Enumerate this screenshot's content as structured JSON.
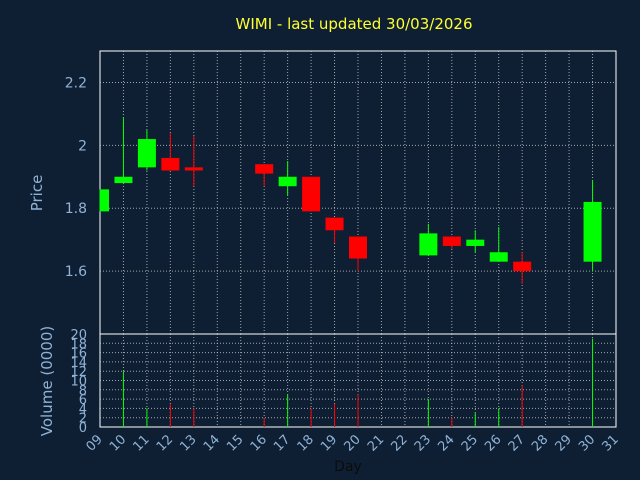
{
  "chart_data": {
    "type": "candlestick",
    "title": "WIMI - last updated 30/03/2026",
    "xlabel": "Day",
    "price_panel": {
      "ylabel": "Price",
      "ylim": [
        1.4,
        2.3
      ],
      "yticks": [
        "2.2",
        "2",
        "1.8",
        "1.6"
      ],
      "ytick_values": [
        2.2,
        2.0,
        1.8,
        1.6
      ],
      "grid": true
    },
    "volume_panel": {
      "ylabel": "Volume (0000)",
      "ylim": [
        0,
        20
      ],
      "yticks": [
        "0",
        "2",
        "4",
        "6",
        "8",
        "10",
        "12",
        "14",
        "16",
        "18",
        "20"
      ],
      "ytick_values": [
        0,
        2,
        4,
        6,
        8,
        10,
        12,
        14,
        16,
        18,
        20
      ],
      "grid": true
    },
    "x_range": [
      9,
      31
    ],
    "x_ticks": [
      "09",
      "10",
      "11",
      "12",
      "13",
      "14",
      "15",
      "16",
      "17",
      "18",
      "19",
      "20",
      "21",
      "22",
      "23",
      "24",
      "25",
      "26",
      "27",
      "28",
      "29",
      "30",
      "31"
    ],
    "colors": {
      "up": "#00ff00",
      "down": "#ff0000",
      "background": "#0f1f33",
      "grid": "#c8c8c8"
    },
    "candles": [
      {
        "day": 9,
        "open": 1.79,
        "close": 1.86,
        "high": 1.86,
        "low": 1.79,
        "volume": 0
      },
      {
        "day": 10,
        "open": 1.88,
        "close": 1.9,
        "high": 2.09,
        "low": 1.88,
        "volume": 12
      },
      {
        "day": 11,
        "open": 1.93,
        "close": 2.02,
        "high": 2.05,
        "low": 1.92,
        "volume": 4
      },
      {
        "day": 12,
        "open": 1.96,
        "close": 1.92,
        "high": 2.04,
        "low": 1.92,
        "volume": 5
      },
      {
        "day": 13,
        "open": 1.93,
        "close": 1.92,
        "high": 2.03,
        "low": 1.87,
        "volume": 4
      },
      {
        "day": 16,
        "open": 1.94,
        "close": 1.91,
        "high": 1.94,
        "low": 1.87,
        "volume": 2
      },
      {
        "day": 17,
        "open": 1.87,
        "close": 1.9,
        "high": 1.95,
        "low": 1.84,
        "volume": 7
      },
      {
        "day": 18,
        "open": 1.9,
        "close": 1.79,
        "high": 1.9,
        "low": 1.79,
        "volume": 4
      },
      {
        "day": 19,
        "open": 1.77,
        "close": 1.73,
        "high": 1.77,
        "low": 1.69,
        "volume": 5
      },
      {
        "day": 20,
        "open": 1.71,
        "close": 1.64,
        "high": 1.71,
        "low": 1.6,
        "volume": 7
      },
      {
        "day": 23,
        "open": 1.65,
        "close": 1.72,
        "high": 1.75,
        "low": 1.65,
        "volume": 6
      },
      {
        "day": 24,
        "open": 1.71,
        "close": 1.68,
        "high": 1.71,
        "low": 1.67,
        "volume": 2
      },
      {
        "day": 25,
        "open": 1.68,
        "close": 1.7,
        "high": 1.73,
        "low": 1.66,
        "volume": 3
      },
      {
        "day": 26,
        "open": 1.63,
        "close": 1.66,
        "high": 1.74,
        "low": 1.63,
        "volume": 4
      },
      {
        "day": 27,
        "open": 1.63,
        "close": 1.6,
        "high": 1.66,
        "low": 1.56,
        "volume": 9
      },
      {
        "day": 30,
        "open": 1.63,
        "close": 1.82,
        "high": 1.89,
        "low": 1.6,
        "volume": 19
      }
    ]
  }
}
